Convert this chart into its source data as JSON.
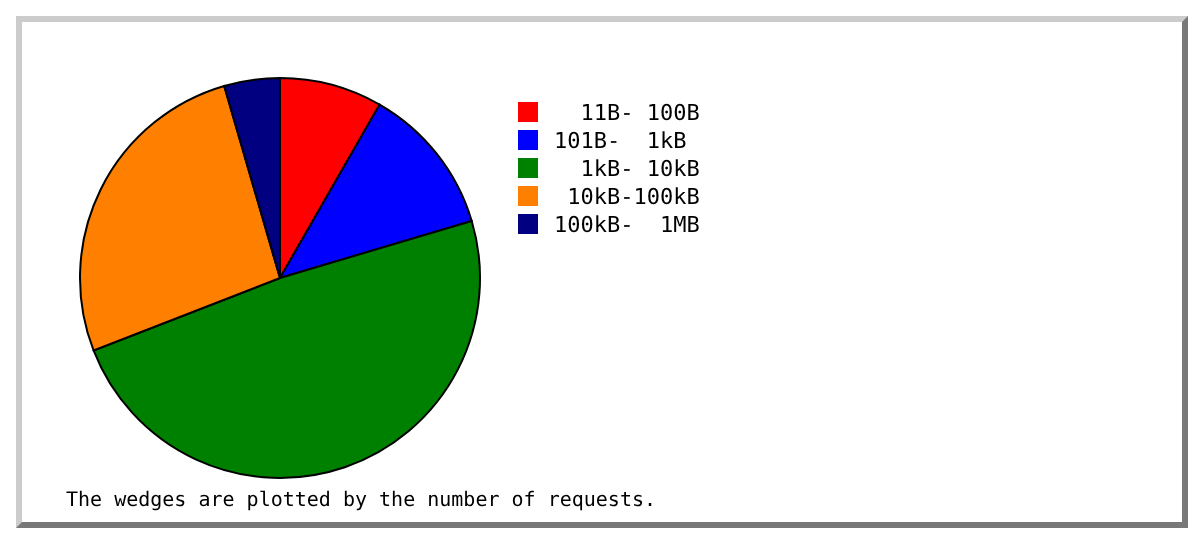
{
  "chart_data": {
    "type": "pie",
    "categories": [
      "  11B- 100B",
      "101B-  1kB",
      "  1kB- 10kB",
      " 10kB-100kB",
      "100kB-  1MB"
    ],
    "values": [
      8.3,
      12.1,
      48.7,
      26.4,
      4.5
    ],
    "colors": [
      "#ff0000",
      "#0000ff",
      "#008000",
      "#ff8000",
      "#000080"
    ],
    "legend": "right",
    "annotations": [
      "The wedges are plotted by the number of requests."
    ]
  }
}
